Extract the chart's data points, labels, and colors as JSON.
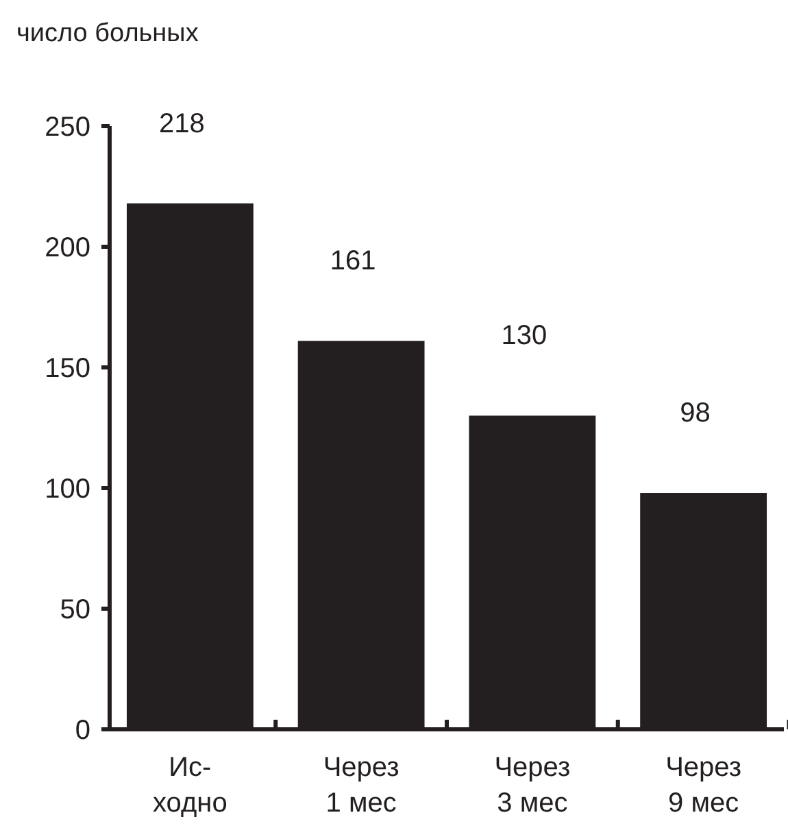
{
  "chart_data": {
    "type": "bar",
    "ylabel": "число больных",
    "categories": [
      "Ис-\nходно",
      "Через\n1 мес",
      "Через\n3 мес",
      "Через\n9 мес"
    ],
    "values": [
      218,
      161,
      130,
      98
    ],
    "color": "#231f20",
    "ylim": [
      0,
      250
    ],
    "yticks": [
      0,
      50,
      100,
      150,
      200,
      250
    ],
    "grid": false,
    "data_labels": true
  }
}
